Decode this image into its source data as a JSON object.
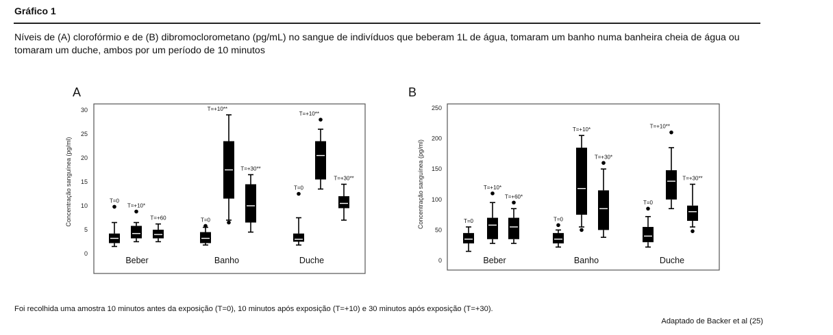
{
  "heading": "Gráfico 1",
  "caption": "Níveis de (A) clorofórmio e de (B) dibromoclorometano (pg/mL) no sangue de indivíduos que beberam 1L de água, tomaram um banho numa banheira cheia de água ou tomaram um duche, ambos por um período de 10 minutos",
  "note": "Foi recolhida uma amostra 10 minutos antes da exposição (T=0), 10 minutos após exposição (T=+10) e 30 minutos após exposição (T=+30).",
  "source": "Adaptado de Backer et al (25)",
  "chart_data": [
    {
      "type": "box",
      "panel": "A",
      "ylabel": "Concentração sanguínea (pg/ml)",
      "ylim": [
        0,
        30
      ],
      "yticks": [
        0,
        5,
        10,
        15,
        20,
        25,
        30
      ],
      "categories": [
        "Beber",
        "Banho",
        "Duche"
      ],
      "boxes": [
        {
          "category": "Beber",
          "label": "T=0",
          "min": 1.5,
          "q1": 2.2,
          "median": 3.2,
          "q3": 4.2,
          "max": 6.5,
          "outliers": [
            9.8
          ]
        },
        {
          "category": "Beber",
          "label": "T=+10*",
          "min": 2.5,
          "q1": 3.2,
          "median": 4.2,
          "q3": 5.8,
          "max": 6.5,
          "outliers": [
            8.8
          ]
        },
        {
          "category": "Beber",
          "label": "T=+60",
          "min": 2.5,
          "q1": 3.2,
          "median": 4.0,
          "q3": 5.0,
          "max": 6.2,
          "outliers": []
        },
        {
          "category": "Banho",
          "label": "T=0",
          "min": 1.8,
          "q1": 2.2,
          "median": 3.2,
          "q3": 4.5,
          "max": 5.5,
          "outliers": [
            5.8
          ]
        },
        {
          "category": "Banho",
          "label": "T=+10**",
          "min": 7.0,
          "q1": 11.5,
          "median": 17.5,
          "q3": 23.5,
          "max": 29.0,
          "outliers": [
            6.5
          ]
        },
        {
          "category": "Banho",
          "label": "T=+30**",
          "min": 4.5,
          "q1": 6.5,
          "median": 10.0,
          "q3": 14.5,
          "max": 16.5,
          "outliers": []
        },
        {
          "category": "Duche",
          "label": "T=0",
          "min": 1.8,
          "q1": 2.5,
          "median": 3.0,
          "q3": 4.2,
          "max": 7.5,
          "outliers": [
            12.5
          ]
        },
        {
          "category": "Duche",
          "label": "T=+10**",
          "min": 13.5,
          "q1": 15.5,
          "median": 20.5,
          "q3": 23.5,
          "max": 26.0,
          "outliers": [
            28.0
          ]
        },
        {
          "category": "Duche",
          "label": "T=+30**",
          "min": 7.0,
          "q1": 9.5,
          "median": 10.5,
          "q3": 12.0,
          "max": 14.5,
          "outliers": []
        }
      ]
    },
    {
      "type": "box",
      "panel": "B",
      "ylabel": "Concentração sanguínea (pg/ml)",
      "ylim": [
        0,
        250
      ],
      "yticks": [
        0,
        50,
        100,
        150,
        200,
        250
      ],
      "categories": [
        "Beber",
        "Banho",
        "Duche"
      ],
      "boxes": [
        {
          "category": "Beber",
          "label": "T=0",
          "min": 15,
          "q1": 28,
          "median": 35,
          "q3": 45,
          "max": 55,
          "outliers": []
        },
        {
          "category": "Beber",
          "label": "T=+10*",
          "min": 28,
          "q1": 35,
          "median": 58,
          "q3": 70,
          "max": 95,
          "outliers": [
            110
          ]
        },
        {
          "category": "Beber",
          "label": "T=+60*",
          "min": 28,
          "q1": 35,
          "median": 55,
          "q3": 70,
          "max": 85,
          "outliers": [
            95
          ]
        },
        {
          "category": "Banho",
          "label": "T=0",
          "min": 22,
          "q1": 28,
          "median": 35,
          "q3": 45,
          "max": 50,
          "outliers": [
            58
          ]
        },
        {
          "category": "Banho",
          "label": "T=+10*",
          "min": 55,
          "q1": 75,
          "median": 118,
          "q3": 185,
          "max": 205,
          "outliers": [
            50
          ]
        },
        {
          "category": "Banho",
          "label": "T=+30*",
          "min": 38,
          "q1": 50,
          "median": 85,
          "q3": 115,
          "max": 150,
          "outliers": [
            160
          ]
        },
        {
          "category": "Duche",
          "label": "T=0",
          "min": 22,
          "q1": 30,
          "median": 40,
          "q3": 55,
          "max": 72,
          "outliers": [
            85
          ]
        },
        {
          "category": "Duche",
          "label": "T=+10**",
          "min": 85,
          "q1": 100,
          "median": 130,
          "q3": 148,
          "max": 185,
          "outliers": [
            210
          ]
        },
        {
          "category": "Duche",
          "label": "T=+30**",
          "min": 55,
          "q1": 65,
          "median": 80,
          "q3": 90,
          "max": 125,
          "outliers": [
            48
          ]
        }
      ]
    }
  ]
}
